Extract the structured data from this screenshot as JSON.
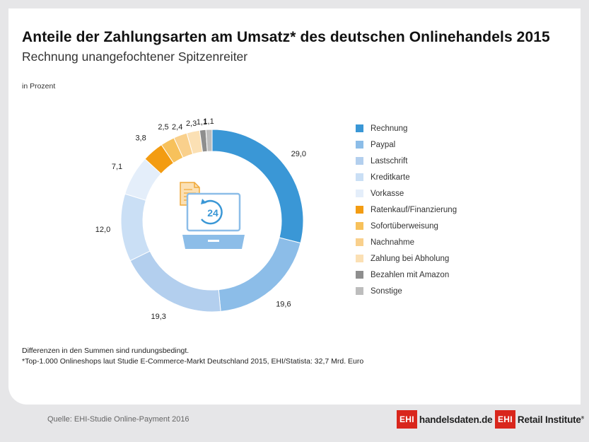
{
  "title": "Anteile der Zahlungsarten am Umsatz* des deutschen Onlinehandels 2015",
  "subtitle": "Rechnung unangefochtener Spitzenreiter",
  "unit_label": "in Prozent",
  "notes": {
    "line1": "Differenzen in den Summen sind rundungsbedingt.",
    "line2": "*Top-1.000 Onlineshops laut Studie E-Commerce-Markt Deutschland 2015, EHI/Statista: 32,7 Mrd. Euro"
  },
  "footer": {
    "source": "Quelle: EHI-Studie Online-Payment 2016",
    "logo1_box": "EHI",
    "logo1_text": "handelsdaten.de",
    "logo2_box": "EHI",
    "logo2_text": "Retail Institute",
    "logo2_reg": "®"
  },
  "center_icon": {
    "clock_number": "24"
  },
  "chart_data": {
    "type": "pie",
    "variant": "donut",
    "legend_position": "right",
    "labels": [
      "Rechnung",
      "Paypal",
      "Lastschrift",
      "Kreditkarte",
      "Vorkasse",
      "Ratenkauf/Finanzierung",
      "Sofortüberweisung",
      "Nachnahme",
      "Zahlung bei Abholung",
      "Bezahlen mit Amazon",
      "Sonstige"
    ],
    "values": [
      29.0,
      19.6,
      19.3,
      12.0,
      7.1,
      3.8,
      2.5,
      2.4,
      2.3,
      1.1,
      1.1
    ],
    "value_labels": [
      "29,0",
      "19,6",
      "19,3",
      "12,0",
      "7,1",
      "3,8",
      "2,5",
      "2,4",
      "2,3",
      "1,1",
      "1,1"
    ],
    "colors": [
      "#3a97d6",
      "#8cbde8",
      "#b3cfee",
      "#cadff5",
      "#e4eefa",
      "#f39c12",
      "#f7c15b",
      "#f9d08c",
      "#fbe0b4",
      "#8e8e8e",
      "#bdbdbd"
    ]
  }
}
